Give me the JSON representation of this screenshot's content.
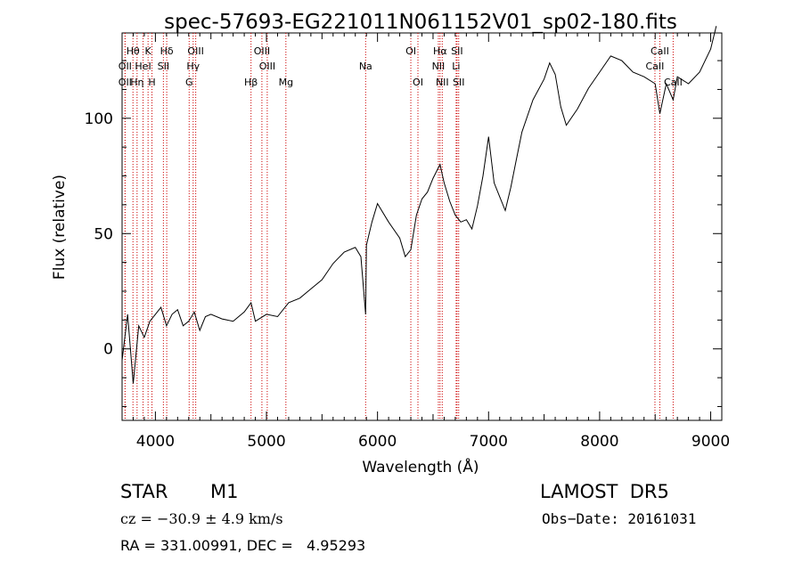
{
  "chart_data": {
    "type": "line",
    "title": "spec-57693-EG221011N061152V01_sp02-180.fits",
    "xlabel": "Wavelength (Å)",
    "ylabel": "Flux (relative)",
    "xlim": [
      3700,
      9100
    ],
    "ylim": [
      -31,
      137
    ],
    "xticks": [
      4000,
      5000,
      6000,
      7000,
      8000,
      9000
    ],
    "yticks": [
      0,
      50,
      100
    ],
    "grid": false,
    "line_color": "#000000",
    "marker_color": "#cc0000",
    "series": [
      {
        "x": [
          3700,
          3750,
          3800,
          3850,
          3900,
          3950,
          4000,
          4050,
          4100,
          4150,
          4200,
          4250,
          4300,
          4350,
          4400,
          4450,
          4500,
          4600,
          4700,
          4800,
          4861,
          4900,
          5000,
          5100,
          5200,
          5300,
          5400,
          5500,
          5600,
          5700,
          5800,
          5850,
          5893,
          5900,
          5950,
          6000,
          6100,
          6200,
          6250,
          6300,
          6350,
          6400,
          6450,
          6500,
          6563,
          6600,
          6650,
          6700,
          6750,
          6800,
          6850,
          6900,
          6950,
          7000,
          7050,
          7100,
          7150,
          7200,
          7250,
          7300,
          7400,
          7500,
          7550,
          7600,
          7650,
          7700,
          7800,
          7900,
          8000,
          8100,
          8200,
          8300,
          8400,
          8500,
          8542,
          8600,
          8662,
          8700,
          8800,
          8900,
          9000,
          9050
        ],
        "y": [
          -5,
          15,
          -15,
          10,
          5,
          12,
          15,
          18,
          10,
          15,
          17,
          10,
          12,
          16,
          8,
          14,
          15,
          13,
          12,
          16,
          20,
          12,
          15,
          14,
          20,
          22,
          26,
          30,
          37,
          42,
          44,
          40,
          15,
          45,
          55,
          63,
          55,
          48,
          40,
          43,
          58,
          65,
          68,
          74,
          80,
          72,
          64,
          58,
          55,
          56,
          52,
          62,
          75,
          92,
          72,
          66,
          60,
          70,
          82,
          94,
          108,
          117,
          124,
          119,
          105,
          97,
          104,
          113,
          120,
          127,
          125,
          120,
          118,
          115,
          102,
          115,
          108,
          118,
          115,
          120,
          130,
          140
        ]
      }
    ],
    "lines": [
      {
        "name": "Hδ",
        "x": 4102,
        "label": "Hδ",
        "row": 1
      },
      {
        "name": "H",
        "x": 3969,
        "label": "H",
        "row": 3
      },
      {
        "name": "K",
        "x": 3934,
        "label": "K",
        "row": 1
      },
      {
        "name": "Hθ",
        "x": 3798,
        "label": "Hθ",
        "row": 1
      },
      {
        "name": "OII",
        "x": 3727,
        "label": "OII",
        "row": 2
      },
      {
        "name": "OII b",
        "x": 3727,
        "label": "OII",
        "row": 3
      },
      {
        "name": "Hη",
        "x": 3835,
        "label": "Hη",
        "row": 3
      },
      {
        "name": "HeI",
        "x": 3889,
        "label": "HeI",
        "row": 2
      },
      {
        "name": "SII",
        "x": 4072,
        "label": "SII",
        "row": 2
      },
      {
        "name": "OIII",
        "x": 4363,
        "label": "OIII",
        "row": 1
      },
      {
        "name": "Hγ",
        "x": 4340,
        "label": "Hγ",
        "row": 2
      },
      {
        "name": "G",
        "x": 4304,
        "label": "G",
        "row": 3
      },
      {
        "name": "Hβ",
        "x": 4861,
        "label": "Hβ",
        "row": 3
      },
      {
        "name": "OIII b",
        "x": 4959,
        "label": "OIII",
        "row": 1
      },
      {
        "name": "OIII c",
        "x": 5007,
        "label": "OIII",
        "row": 2
      },
      {
        "name": "Mg",
        "x": 5175,
        "label": "Mg",
        "row": 3
      },
      {
        "name": "Na",
        "x": 5893,
        "label": "Na",
        "row": 2
      },
      {
        "name": "OI",
        "x": 6300,
        "label": "OI",
        "row": 1
      },
      {
        "name": "OI b",
        "x": 6364,
        "label": "OI",
        "row": 3
      },
      {
        "name": "Hα",
        "x": 6563,
        "label": "Hα",
        "row": 1
      },
      {
        "name": "NII",
        "x": 6548,
        "label": "NII",
        "row": 2
      },
      {
        "name": "NII b",
        "x": 6583,
        "label": "NII",
        "row": 3
      },
      {
        "name": "SII b",
        "x": 6716,
        "label": "SII",
        "row": 1
      },
      {
        "name": "Li",
        "x": 6708,
        "label": "Li",
        "row": 2
      },
      {
        "name": "SII c",
        "x": 6731,
        "label": "SII",
        "row": 3
      },
      {
        "name": "CaII",
        "x": 8542,
        "label": "CaII",
        "row": 1
      },
      {
        "name": "CaII b",
        "x": 8498,
        "label": "CaII",
        "row": 2
      },
      {
        "name": "CaII c",
        "x": 8662,
        "label": "CaII",
        "row": 3
      }
    ]
  },
  "info": {
    "class": "STAR",
    "subclass": "M1",
    "survey": "LAMOST  DR5",
    "cz": "cz = −30.9 ± 4.9 km/s",
    "obsdate": "Obs−Date: 20161031",
    "radec": "RA = 331.00991, DEC =   4.95293"
  }
}
